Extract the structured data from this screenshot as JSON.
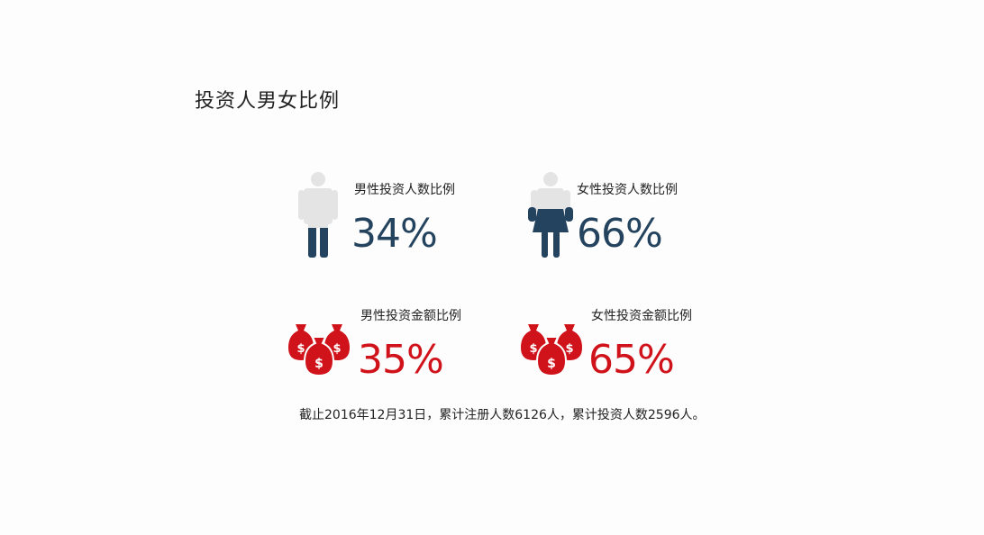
{
  "page": {
    "title": "投资人男女比例"
  },
  "colors": {
    "navy": "#24435e",
    "red": "#d0121b",
    "gray": "#e4e4e4",
    "text": "#222222"
  },
  "chart_data": {
    "type": "table",
    "title": "投资人男女比例",
    "rows": [
      {
        "label": "男性投资人数比例",
        "value": 34,
        "display": "34%",
        "icon": "male-person-icon",
        "color": "#24435e"
      },
      {
        "label": "女性投资人数比例",
        "value": 66,
        "display": "66%",
        "icon": "female-person-icon",
        "color": "#24435e"
      },
      {
        "label": "男性投资金额比例",
        "value": 35,
        "display": "35%",
        "icon": "money-bags-icon",
        "color": "#d0121b"
      },
      {
        "label": "女性投资金额比例",
        "value": 65,
        "display": "65%",
        "icon": "money-bags-icon",
        "color": "#d0121b"
      }
    ]
  },
  "footnote": "截止2016年12月31日，累计注册人数6126人，累计投资人数2596人。"
}
